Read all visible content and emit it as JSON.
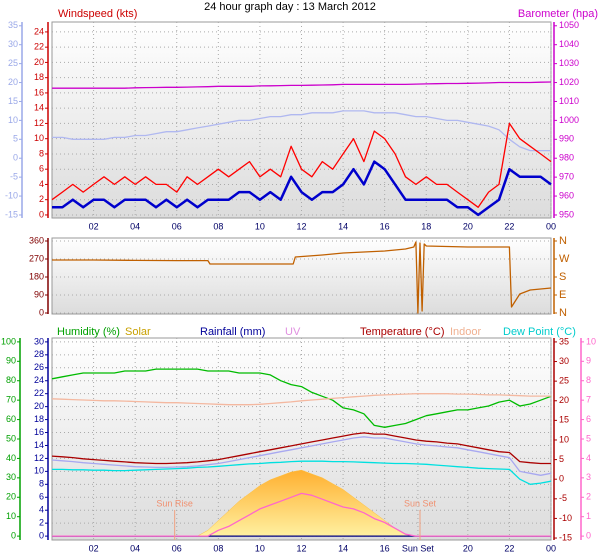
{
  "chart_data": [
    {
      "type": "line",
      "title": "24 hour graph day : 13 March 2012",
      "xlim": [
        0,
        24
      ],
      "xticks": [
        {
          "value": 2,
          "label": "02"
        },
        {
          "value": 4,
          "label": "04"
        },
        {
          "value": 6,
          "label": "06"
        },
        {
          "value": 8,
          "label": "08"
        },
        10,
        12,
        14,
        16,
        18,
        20,
        22,
        {
          "value": 24,
          "label": "00"
        }
      ],
      "grid_axis": "wind",
      "axes": [
        {
          "id": "feel",
          "color": "#9aa8e8",
          "lim": [
            -15.8,
            36
          ],
          "ticks": [
            -15,
            -10,
            -5,
            0,
            5,
            10,
            15,
            20,
            25,
            30,
            35
          ]
        },
        {
          "id": "wind",
          "label": "Windspeed (kts)",
          "color": "#cc0000",
          "lim": [
            -0.4,
            25.3
          ],
          "ticks": [
            0,
            2,
            4,
            6,
            8,
            10,
            12,
            14,
            16,
            18,
            20,
            22,
            24
          ]
        },
        {
          "id": "baro",
          "label": "Barometer (hpa)",
          "color": "#cc00cc",
          "lim": [
            948.4,
            1052
          ],
          "ticks": [
            950,
            960,
            970,
            980,
            990,
            1000,
            1010,
            1020,
            1030,
            1040,
            1050
          ]
        }
      ],
      "x": [
        0,
        0.5,
        1,
        1.5,
        2,
        2.5,
        3,
        3.5,
        4,
        4.5,
        5,
        5.5,
        6,
        6.5,
        7,
        7.5,
        8,
        8.5,
        9,
        9.5,
        10,
        10.5,
        11,
        11.5,
        12,
        12.5,
        13,
        13.5,
        14,
        14.5,
        15,
        15.5,
        16,
        16.5,
        17,
        17.5,
        18,
        18.5,
        19,
        19.5,
        20,
        20.5,
        21,
        21.5,
        22,
        22.5,
        23,
        23.5,
        24
      ],
      "series": [
        {
          "color": "#b0b8f0",
          "axis": "feel",
          "values": [
            5.5,
            5.5,
            5,
            5,
            5,
            5,
            5.5,
            5.5,
            6,
            6,
            6.5,
            7,
            7,
            7.5,
            8,
            8.5,
            9,
            9.5,
            10,
            10,
            10.5,
            11,
            11,
            11.5,
            11.5,
            12,
            12,
            12,
            12.5,
            12.5,
            12.5,
            12,
            12,
            12,
            11.5,
            11,
            11,
            10.5,
            10,
            10,
            9.5,
            9,
            8.5,
            7.5,
            5,
            3,
            2,
            2,
            2
          ]
        },
        {
          "color": "#cc00cc",
          "axis": "baro",
          "values": [
            1017,
            1017,
            1017,
            1017,
            1017,
            1017,
            1017,
            1017,
            1017.2,
            1017.3,
            1017.4,
            1017.5,
            1017.5,
            1017.6,
            1017.7,
            1017.8,
            1018,
            1018,
            1018,
            1018,
            1018.2,
            1018.3,
            1018.4,
            1018.5,
            1018.5,
            1018.6,
            1018.7,
            1018.8,
            1019,
            1019,
            1019,
            1019,
            1019,
            1019,
            1019,
            1019.2,
            1019.3,
            1019.4,
            1019.5,
            1019.5,
            1019.6,
            1019.7,
            1019.8,
            1020,
            1020,
            1020,
            1020,
            1020.2,
            1020.3
          ]
        },
        {
          "color": "#ff0000",
          "axis": "wind",
          "values": [
            2,
            3,
            4,
            3,
            4,
            5,
            4,
            5,
            4,
            5,
            4,
            4,
            3,
            5,
            4,
            5,
            6,
            5,
            6,
            7,
            5,
            6,
            5,
            9,
            6,
            5,
            7,
            6,
            8,
            10,
            7,
            11,
            10,
            8,
            5,
            4,
            5,
            4,
            4,
            3,
            2,
            1,
            3,
            4,
            12,
            10,
            9,
            8,
            7
          ]
        },
        {
          "color": "#0000cc",
          "axis": "wind",
          "width": 2.5,
          "values": [
            1,
            1,
            2,
            1,
            2,
            2,
            1,
            2,
            2,
            2,
            1,
            2,
            1,
            2,
            1,
            2,
            2,
            2,
            3,
            3,
            2,
            3,
            2,
            5,
            3,
            2,
            3,
            3,
            4,
            6,
            4,
            7,
            6,
            4,
            2,
            2,
            2,
            2,
            2,
            1,
            1,
            0,
            1,
            2,
            6,
            5,
            5,
            5,
            4
          ]
        }
      ]
    },
    {
      "type": "line",
      "xlim": [
        0,
        24
      ],
      "grid_axis": "deg",
      "axes": [
        {
          "id": "deg",
          "color": "#800000",
          "lim": [
            -5,
            375
          ],
          "ticks": [
            0,
            90,
            180,
            270,
            360
          ]
        },
        {
          "id": "compass",
          "color": "#c06000",
          "lim": [
            -5,
            375
          ],
          "ticks": [
            {
              "value": 360,
              "label": "N"
            },
            {
              "value": 270,
              "label": "W"
            },
            {
              "value": 180,
              "label": "S"
            },
            {
              "value": 90,
              "label": "E"
            },
            {
              "value": 0,
              "label": "N"
            }
          ]
        }
      ],
      "x": [
        0,
        2,
        4,
        6,
        7.5,
        7.6,
        10,
        11.6,
        11.7,
        13,
        14,
        15,
        16,
        17,
        17.4,
        17.5,
        17.6,
        17.7,
        17.8,
        17.9,
        18,
        20,
        22,
        22.1,
        22.5,
        23,
        24
      ],
      "series": [
        {
          "color": "#c06000",
          "axis": "deg",
          "values": [
            265,
            265,
            263,
            262,
            262,
            245,
            245,
            245,
            280,
            290,
            300,
            305,
            310,
            320,
            330,
            355,
            0,
            350,
            10,
            345,
            335,
            330,
            330,
            30,
            95,
            115,
            125
          ]
        }
      ]
    },
    {
      "type": "line",
      "xlim": [
        0,
        24
      ],
      "xticks": [
        {
          "value": 2,
          "label": "02"
        },
        {
          "value": 4,
          "label": "04"
        },
        {
          "value": 6,
          "label": "06"
        },
        {
          "value": 8,
          "label": "08"
        },
        10,
        12,
        14,
        16,
        {
          "value": 17.6,
          "label": "Sun Set"
        },
        20,
        22,
        {
          "value": 24,
          "label": "00"
        }
      ],
      "grid_axis": "rain",
      "axes": [
        {
          "id": "hum",
          "color": "#00a000",
          "lim": [
            -2,
            102
          ],
          "ticks": [
            0,
            10,
            20,
            30,
            40,
            50,
            60,
            70,
            80,
            90,
            100
          ]
        },
        {
          "id": "rain",
          "color": "#000099",
          "lim": [
            -0.6,
            30.6
          ],
          "ticks": [
            0,
            2,
            4,
            6,
            8,
            10,
            12,
            14,
            16,
            18,
            20,
            22,
            24,
            26,
            28,
            30
          ]
        },
        {
          "id": "temp",
          "color": "#aa0000",
          "lim": [
            -15.5,
            36
          ],
          "ticks": [
            -15,
            -10,
            -5,
            0,
            5,
            10,
            15,
            20,
            25,
            30,
            35
          ]
        },
        {
          "id": "uv",
          "color": "#ff66cc",
          "lim": [
            -0.2,
            10.2
          ],
          "ticks": [
            0,
            1,
            2,
            3,
            4,
            5,
            6,
            7,
            8,
            9,
            10
          ]
        }
      ],
      "x": [
        0,
        0.5,
        1,
        1.5,
        2,
        2.5,
        3,
        3.5,
        4,
        4.5,
        5,
        5.5,
        6,
        6.5,
        7,
        7.5,
        8,
        8.5,
        9,
        9.5,
        10,
        10.5,
        11,
        11.5,
        12,
        12.5,
        13,
        13.5,
        14,
        14.5,
        15,
        15.5,
        16,
        16.5,
        17,
        17.5,
        18,
        18.5,
        19,
        19.5,
        20,
        20.5,
        21,
        21.5,
        22,
        22.5,
        23,
        23.5,
        24
      ],
      "series": [
        {
          "name": "Humidity (%)",
          "color": "#00bb00",
          "label_color": "#00a000",
          "axis": "hum",
          "values": [
            81,
            82,
            83,
            84,
            84,
            84,
            84,
            85,
            85,
            85,
            86,
            86,
            86,
            86,
            86,
            85,
            85,
            85,
            84,
            84,
            84,
            83,
            80,
            78,
            77,
            74,
            72,
            70,
            66,
            65,
            63,
            57,
            56,
            57,
            58,
            60,
            62,
            63,
            64,
            65,
            65,
            66,
            67,
            69,
            70,
            67,
            68,
            70,
            72
          ]
        },
        {
          "name": "Solar",
          "color": "#ffc040",
          "label_color": "#c8a000",
          "axis": "hum",
          "fill": true,
          "values": [
            0,
            0,
            0,
            0,
            0,
            0,
            0,
            0,
            0,
            0,
            0,
            0,
            0,
            0,
            0,
            3,
            8,
            13,
            18,
            22,
            26,
            29,
            31,
            33,
            34,
            32,
            30,
            27,
            24,
            20,
            16,
            12,
            8,
            4,
            1,
            0,
            0,
            0,
            0,
            0,
            0,
            0,
            0,
            0,
            0,
            0,
            0,
            0,
            0
          ]
        },
        {
          "name": "Rainfall (mm)",
          "color": "#000080",
          "label_color": "#000099",
          "axis": "rain",
          "values": [
            0,
            0,
            0,
            0,
            0,
            0,
            0,
            0,
            0,
            0,
            0,
            0,
            0,
            0,
            0,
            0,
            0,
            0,
            0,
            0,
            0,
            0,
            0,
            0,
            0,
            0,
            0,
            0,
            0,
            0,
            0,
            0,
            0,
            0,
            0,
            0,
            0,
            0,
            0,
            0,
            0,
            0,
            0,
            0,
            0,
            0,
            0,
            0,
            0
          ]
        },
        {
          "name": "UV",
          "color": "#ff66cc",
          "label_color": "#e090e0",
          "axis": "uv",
          "values": [
            0,
            0,
            0,
            0,
            0,
            0,
            0,
            0,
            0,
            0,
            0,
            0,
            0,
            0,
            0,
            0,
            0.3,
            0.5,
            0.8,
            1.1,
            1.4,
            1.6,
            1.8,
            2,
            2.2,
            2.1,
            1.9,
            1.7,
            1.5,
            1.4,
            1.2,
            0.9,
            0.7,
            0.4,
            0.1,
            0,
            0,
            0,
            0,
            0,
            0,
            0,
            0,
            0,
            0,
            0,
            0,
            0,
            0
          ]
        },
        {
          "name": "Temperature (°C)",
          "color": "#aa0000",
          "label_color": "#aa0000",
          "axis": "temp",
          "values": [
            5.9,
            5.7,
            5.5,
            5.2,
            5,
            4.8,
            4.6,
            4.4,
            4.2,
            4.1,
            4,
            4,
            4.1,
            4.2,
            4.4,
            4.7,
            5,
            5.5,
            6,
            6.5,
            7,
            7.5,
            8,
            8.5,
            9,
            9.5,
            10,
            10.5,
            11,
            11.5,
            11.8,
            11.5,
            11.5,
            11,
            10.5,
            10,
            9.7,
            9.5,
            9.2,
            9,
            8.5,
            8,
            7.5,
            7,
            6.8,
            4.5,
            4.2,
            4,
            4
          ]
        },
        {
          "name": "Indoor",
          "color": "#f4b8a0",
          "label_color": "#f0b090",
          "axis": "temp",
          "values": [
            20.5,
            20.4,
            20.3,
            20.2,
            20.1,
            20,
            20,
            19.9,
            19.8,
            19.7,
            19.6,
            19.5,
            19.5,
            19.4,
            19.3,
            19.2,
            19.1,
            19,
            19,
            19,
            19.1,
            19.3,
            19.5,
            19.7,
            20,
            20.2,
            20.4,
            20.6,
            20.8,
            21,
            21.2,
            21.4,
            21.5,
            21.6,
            21.7,
            21.8,
            21.8,
            21.8,
            21.8,
            21.7,
            21.7,
            21.6,
            21.5,
            21.5,
            21.4,
            21.3,
            21.2,
            21.2,
            21.2
          ]
        },
        {
          "name": "Dew Point (°C)",
          "color": "#00e0e0",
          "label_color": "#00cccc",
          "axis": "temp",
          "values": [
            2.5,
            2.5,
            2.4,
            2.4,
            2.3,
            2.3,
            2.2,
            2.2,
            2.3,
            2.4,
            2.5,
            2.6,
            2.7,
            2.8,
            3,
            3.1,
            3.3,
            3.5,
            3.7,
            3.9,
            4,
            4.2,
            4.3,
            4.5,
            4.6,
            4.6,
            4.6,
            4.5,
            4.5,
            4.4,
            4.3,
            4.2,
            4.1,
            4,
            4,
            3.9,
            3.8,
            3.6,
            3.4,
            3.2,
            3,
            2.8,
            2.7,
            2.6,
            2.5,
            0,
            -1.3,
            -1,
            -0.5
          ]
        },
        {
          "color": "#a8a8f0",
          "axis": "temp",
          "values": [
            4.9,
            4.7,
            4.5,
            4.2,
            4,
            3.8,
            3.6,
            3.4,
            3.2,
            3.1,
            3,
            3,
            3.1,
            3.2,
            3.4,
            3.7,
            4,
            4.5,
            5,
            5.5,
            6,
            6.5,
            7,
            7.5,
            8,
            8.5,
            9,
            9.5,
            10,
            10.5,
            10.8,
            10.5,
            10.5,
            10,
            9.5,
            9,
            8.7,
            8.5,
            8.2,
            8,
            7.5,
            7,
            6.5,
            6,
            5.5,
            2,
            1.5,
            1,
            1.5
          ]
        }
      ],
      "annotations": [
        {
          "text": "Sun Rise",
          "x": 5.9
        },
        {
          "text": "Sun Set",
          "x": 17.7
        }
      ]
    }
  ]
}
